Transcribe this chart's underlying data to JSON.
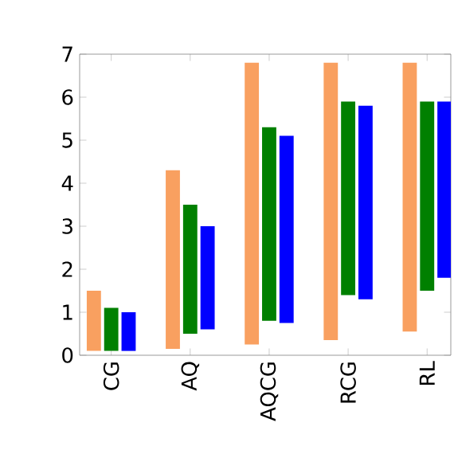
{
  "chart_data": {
    "type": "bar",
    "categories": [
      "CG",
      "AQ",
      "AQCG",
      "RCG",
      "RL"
    ],
    "series": [
      {
        "color": "#f9a060",
        "base": [
          0.1,
          0.15,
          0.25,
          0.35,
          0.55
        ],
        "values": [
          1.4,
          4.15,
          6.55,
          6.45,
          6.25
        ]
      },
      {
        "color": "#008000",
        "base": [
          0.1,
          0.5,
          0.8,
          1.4,
          1.5
        ],
        "values": [
          1.0,
          3.0,
          4.5,
          4.5,
          4.4
        ]
      },
      {
        "color": "#0000ff",
        "base": [
          0.1,
          0.6,
          0.75,
          1.3,
          1.8
        ],
        "values": [
          0.9,
          2.4,
          4.35,
          4.5,
          4.1
        ]
      }
    ],
    "ylim": [
      0,
      7
    ],
    "yticks": [
      0,
      1,
      2,
      3,
      4,
      5,
      6,
      7
    ]
  }
}
